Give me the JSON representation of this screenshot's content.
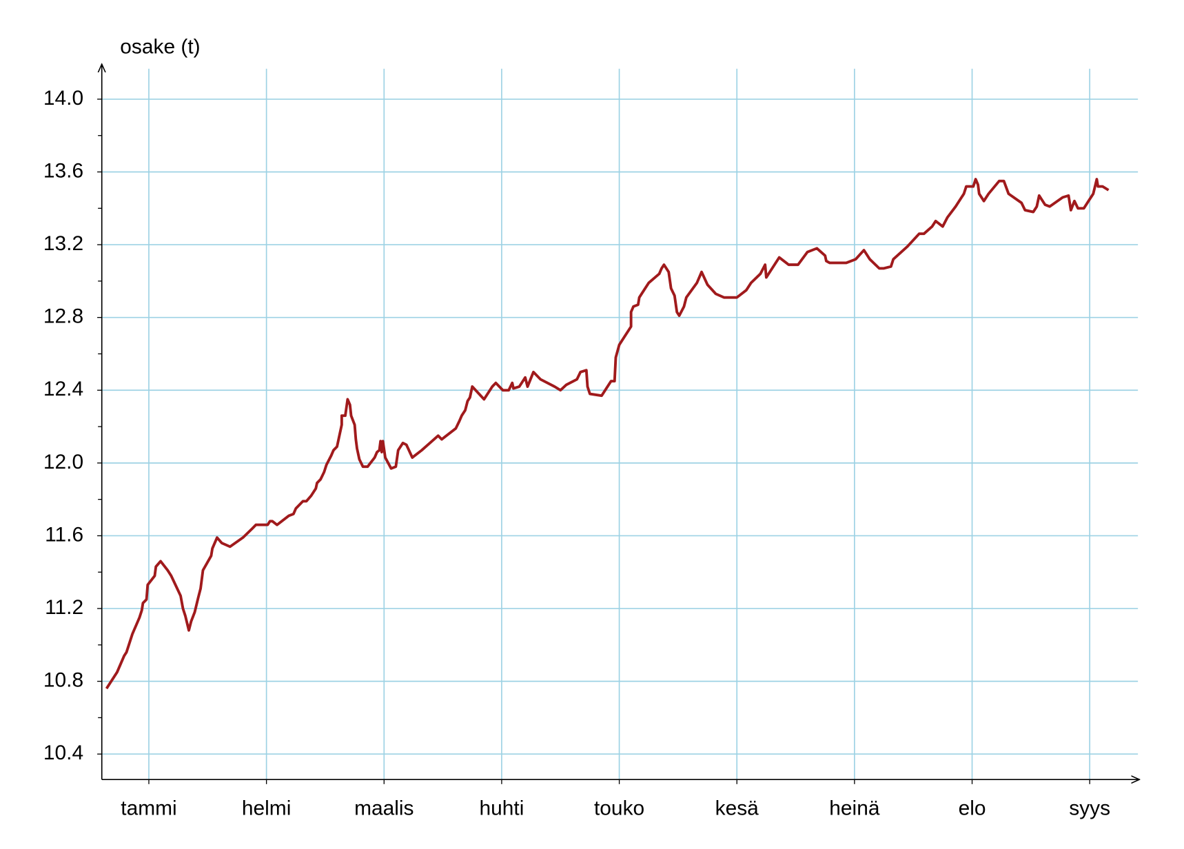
{
  "chart_data": {
    "type": "line",
    "y_label": "osake (t)",
    "xlim": [
      0.6,
      9.41
    ],
    "xticks": [
      {
        "value": 1,
        "label": "tammi"
      },
      {
        "value": 2,
        "label": "helmi"
      },
      {
        "value": 3,
        "label": "maalis"
      },
      {
        "value": 4,
        "label": "huhti"
      },
      {
        "value": 5,
        "label": "touko"
      },
      {
        "value": 6,
        "label": "kesä"
      },
      {
        "value": 7,
        "label": "heinä"
      },
      {
        "value": 8,
        "label": "elo"
      },
      {
        "value": 9,
        "label": "syys"
      }
    ],
    "ylim": [
      10.26,
      14.18
    ],
    "yticks": [
      10.4,
      10.8,
      11.2,
      11.6,
      {
        "value": 12,
        "label": "12.0"
      },
      12.4,
      12.8,
      13.2,
      13.6,
      {
        "value": 14,
        "label": "14.0"
      }
    ],
    "yticks_minor": [
      10.6,
      11.0,
      11.4,
      11.8,
      12.2,
      12.6,
      13.0,
      13.4,
      13.8
    ],
    "grid": true,
    "grid_color": "#9dd2e4",
    "series": [
      {
        "color": "#a01a1c",
        "x": [
          0.64,
          0.73,
          0.79,
          0.81,
          0.86,
          0.92,
          0.94,
          0.95,
          0.98,
          0.99,
          1.05,
          1.06,
          1.1,
          1.16,
          1.19,
          1.27,
          1.29,
          1.31,
          1.34,
          1.36,
          1.39,
          1.42,
          1.44,
          1.46,
          1.53,
          1.54,
          1.58,
          1.62,
          1.69,
          1.8,
          1.88,
          1.91,
          2.01,
          2.03,
          2.05,
          2.09,
          2.19,
          2.23,
          2.25,
          2.31,
          2.34,
          2.38,
          2.42,
          2.43,
          2.46,
          2.49,
          2.51,
          2.55,
          2.57,
          2.6,
          2.64,
          2.64,
          2.67,
          2.69,
          2.71,
          2.72,
          2.75,
          2.76,
          2.77,
          2.79,
          2.82,
          2.86,
          2.92,
          2.94,
          2.96,
          2.97,
          2.98,
          2.99,
          3.01,
          3.06,
          3.1,
          3.12,
          3.16,
          3.19,
          3.24,
          3.32,
          3.39,
          3.46,
          3.49,
          3.61,
          3.64,
          3.66,
          3.69,
          3.71,
          3.73,
          3.75,
          3.85,
          3.92,
          3.95,
          4.01,
          4.06,
          4.09,
          4.1,
          4.15,
          4.2,
          4.22,
          4.27,
          4.33,
          4.45,
          4.5,
          4.55,
          4.64,
          4.67,
          4.72,
          4.73,
          4.75,
          4.85,
          4.93,
          4.96,
          4.97,
          5.0,
          5.05,
          5.1,
          5.1,
          5.12,
          5.16,
          5.17,
          5.22,
          5.25,
          5.34,
          5.36,
          5.38,
          5.42,
          5.44,
          5.47,
          5.49,
          5.51,
          5.55,
          5.57,
          5.66,
          5.7,
          5.75,
          5.82,
          5.89,
          6.0,
          6.08,
          6.12,
          6.2,
          6.24,
          6.25,
          6.32,
          6.36,
          6.44,
          6.52,
          6.6,
          6.68,
          6.75,
          6.76,
          6.79,
          6.93,
          7.01,
          7.08,
          7.13,
          7.21,
          7.25,
          7.31,
          7.33,
          7.45,
          7.55,
          7.59,
          7.66,
          7.69,
          7.75,
          7.79,
          7.86,
          7.93,
          7.95,
          8.01,
          8.03,
          8.05,
          8.06,
          8.1,
          8.14,
          8.23,
          8.27,
          8.31,
          8.42,
          8.45,
          8.52,
          8.55,
          8.57,
          8.62,
          8.66,
          8.77,
          8.82,
          8.84,
          8.87,
          8.9,
          8.95,
          8.99,
          9.03,
          9.06,
          9.07,
          9.11,
          9.16
        ],
        "values": [
          10.76,
          10.85,
          10.94,
          10.96,
          11.06,
          11.15,
          11.19,
          11.23,
          11.25,
          11.33,
          11.38,
          11.43,
          11.46,
          11.41,
          11.38,
          11.27,
          11.2,
          11.16,
          11.08,
          11.13,
          11.18,
          11.26,
          11.31,
          11.41,
          11.49,
          11.53,
          11.59,
          11.56,
          11.54,
          11.59,
          11.64,
          11.66,
          11.66,
          11.68,
          11.68,
          11.66,
          11.71,
          11.72,
          11.75,
          11.79,
          11.79,
          11.82,
          11.86,
          11.89,
          11.91,
          11.95,
          11.99,
          12.04,
          12.07,
          12.09,
          12.21,
          12.26,
          12.26,
          12.35,
          12.32,
          12.26,
          12.21,
          12.13,
          12.08,
          12.02,
          11.98,
          11.98,
          12.03,
          12.06,
          12.07,
          12.12,
          12.06,
          12.12,
          12.03,
          11.97,
          11.98,
          12.07,
          12.11,
          12.1,
          12.03,
          12.07,
          12.11,
          12.15,
          12.13,
          12.19,
          12.23,
          12.26,
          12.29,
          12.34,
          12.36,
          12.42,
          12.35,
          12.42,
          12.44,
          12.4,
          12.4,
          12.44,
          12.41,
          12.42,
          12.47,
          12.42,
          12.5,
          12.46,
          12.42,
          12.4,
          12.43,
          12.46,
          12.5,
          12.51,
          12.42,
          12.38,
          12.37,
          12.45,
          12.45,
          12.58,
          12.65,
          12.7,
          12.75,
          12.83,
          12.86,
          12.87,
          12.91,
          12.96,
          12.99,
          13.04,
          13.07,
          13.09,
          13.05,
          12.96,
          12.92,
          12.83,
          12.81,
          12.86,
          12.91,
          12.99,
          13.05,
          12.98,
          12.93,
          12.91,
          12.91,
          12.95,
          12.99,
          13.04,
          13.09,
          13.02,
          13.09,
          13.13,
          13.09,
          13.09,
          13.16,
          13.18,
          13.14,
          13.11,
          13.1,
          13.1,
          13.12,
          13.17,
          13.12,
          13.07,
          13.07,
          13.08,
          13.12,
          13.19,
          13.26,
          13.26,
          13.3,
          13.33,
          13.3,
          13.35,
          13.41,
          13.48,
          13.52,
          13.52,
          13.56,
          13.53,
          13.48,
          13.44,
          13.48,
          13.55,
          13.55,
          13.48,
          13.43,
          13.39,
          13.38,
          13.41,
          13.47,
          13.42,
          13.41,
          13.46,
          13.47,
          13.39,
          13.44,
          13.4,
          13.4,
          13.44,
          13.48,
          13.56,
          13.52,
          13.52,
          13.5
        ]
      }
    ]
  }
}
